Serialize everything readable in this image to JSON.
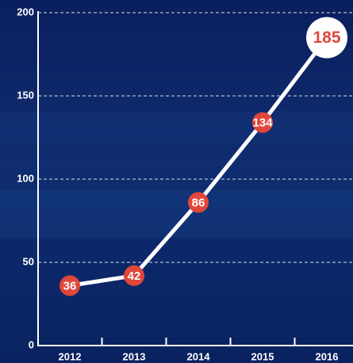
{
  "chart_data": {
    "type": "line",
    "categories": [
      "2012",
      "2013",
      "2014",
      "2015",
      "2016"
    ],
    "values": [
      36,
      42,
      86,
      134,
      185
    ],
    "color": "#ffffff",
    "marker_color": "#e0473a",
    "ylim": [
      0,
      200
    ],
    "yticks": [
      0,
      50,
      100,
      150,
      200
    ],
    "grid": true
  }
}
